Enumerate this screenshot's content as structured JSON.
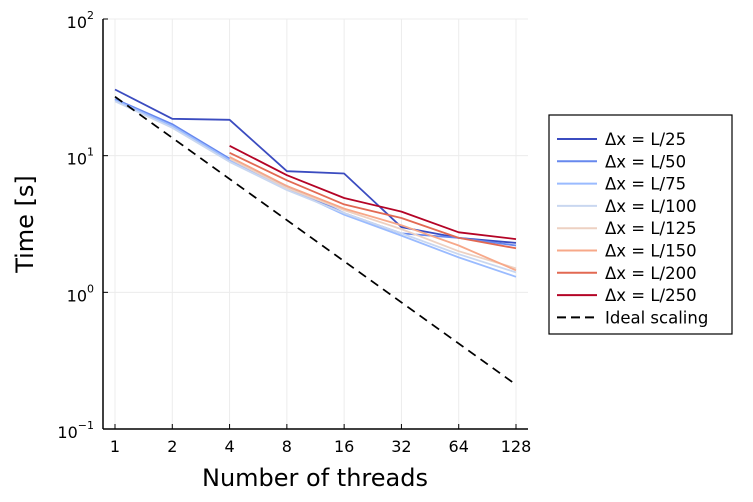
{
  "chart_data": {
    "type": "line",
    "xscale": "log2",
    "yscale": "log10",
    "xlabel": "Number of threads",
    "ylabel": "Time [s]",
    "x_ticks": [
      {
        "value": 1,
        "label": "1"
      },
      {
        "value": 2,
        "label": "2"
      },
      {
        "value": 4,
        "label": "4"
      },
      {
        "value": 8,
        "label": "8"
      },
      {
        "value": 16,
        "label": "16"
      },
      {
        "value": 32,
        "label": "32"
      },
      {
        "value": 64,
        "label": "64"
      },
      {
        "value": 128,
        "label": "128"
      }
    ],
    "y_ticks": [
      {
        "value": 0.1,
        "base": "10",
        "exp": "−1"
      },
      {
        "value": 1,
        "base": "10",
        "exp": "0"
      },
      {
        "value": 10,
        "base": "10",
        "exp": "1"
      },
      {
        "value": 100,
        "base": "10",
        "exp": "2"
      }
    ],
    "xlim": [
      0.9,
      150
    ],
    "ylim": [
      0.1,
      100
    ],
    "grid": true,
    "legend_position": "outside-right",
    "series": [
      {
        "name": "Δx = L/25",
        "color": "#3b4cc0",
        "dash": "solid",
        "x": [
          1,
          2,
          4,
          8,
          16,
          32,
          64,
          128
        ],
        "y": [
          30.5,
          18.6,
          18.3,
          7.7,
          7.4,
          3.0,
          2.5,
          2.3
        ]
      },
      {
        "name": "Δx = L/50",
        "color": "#6788ee",
        "dash": "solid",
        "x": [
          1,
          2,
          4,
          8,
          16,
          32,
          64,
          128
        ],
        "y": [
          26.0,
          17.0,
          9.5,
          6.0,
          3.8,
          2.7,
          2.5,
          2.2
        ]
      },
      {
        "name": "Δx = L/75",
        "color": "#9abbff",
        "dash": "solid",
        "x": [
          1,
          2,
          4,
          8,
          16,
          32,
          64,
          128
        ],
        "y": [
          25.5,
          16.5,
          9.3,
          5.8,
          3.7,
          2.6,
          1.8,
          1.3
        ]
      },
      {
        "name": "Δx = L/100",
        "color": "#c9d7f0",
        "dash": "solid",
        "x": [
          1,
          2,
          4,
          8,
          16,
          32,
          64,
          128
        ],
        "y": [
          25.0,
          16.0,
          9.0,
          5.6,
          3.8,
          2.7,
          1.9,
          1.4
        ]
      },
      {
        "name": "Δx = L/125",
        "color": "#edd1c2",
        "dash": "solid",
        "x": [
          4,
          8,
          16,
          32,
          64,
          128
        ],
        "y": [
          9.5,
          5.8,
          4.0,
          2.9,
          2.0,
          1.5
        ]
      },
      {
        "name": "Δx = L/150",
        "color": "#f7a889",
        "dash": "solid",
        "x": [
          4,
          8,
          16,
          32,
          64,
          128
        ],
        "y": [
          9.8,
          6.0,
          4.1,
          3.1,
          2.2,
          1.45
        ]
      },
      {
        "name": "Δx = L/200",
        "color": "#e26952",
        "dash": "solid",
        "x": [
          4,
          8,
          16,
          32,
          64,
          128
        ],
        "y": [
          10.5,
          6.6,
          4.4,
          3.5,
          2.5,
          2.1
        ]
      },
      {
        "name": "Δx = L/250",
        "color": "#b40426",
        "dash": "solid",
        "x": [
          4,
          8,
          16,
          32,
          64,
          128
        ],
        "y": [
          11.8,
          7.2,
          4.9,
          3.9,
          2.75,
          2.45
        ]
      },
      {
        "name": "Ideal scaling",
        "color": "#000000",
        "dash": "dashed",
        "x": [
          1,
          128
        ],
        "y": [
          27.0,
          0.211
        ]
      }
    ]
  }
}
